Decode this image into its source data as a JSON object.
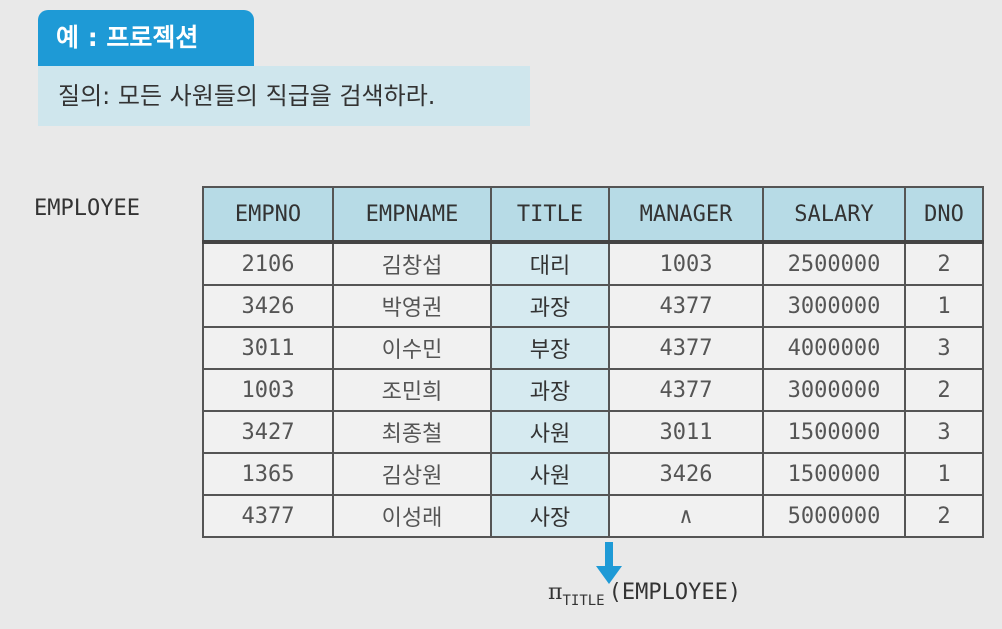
{
  "badge": {
    "text": "예 : 프로젝션"
  },
  "query": {
    "text": "질의: 모든 사원들의 직급을 검색하라."
  },
  "table": {
    "name": "EMPLOYEE",
    "columns": [
      "EMPNO",
      "EMPNAME",
      "TITLE",
      "MANAGER",
      "SALARY",
      "DNO"
    ],
    "rows": [
      [
        "2106",
        "김창섭",
        "대리",
        "1003",
        "2500000",
        "2"
      ],
      [
        "3426",
        "박영권",
        "과장",
        "4377",
        "3000000",
        "1"
      ],
      [
        "3011",
        "이수민",
        "부장",
        "4377",
        "4000000",
        "3"
      ],
      [
        "1003",
        "조민희",
        "과장",
        "4377",
        "3000000",
        "2"
      ],
      [
        "3427",
        "최종철",
        "사원",
        "3011",
        "1500000",
        "3"
      ],
      [
        "1365",
        "김상원",
        "사원",
        "3426",
        "1500000",
        "1"
      ],
      [
        "4377",
        "이성래",
        "사장",
        "∧",
        "5000000",
        "2"
      ]
    ]
  },
  "result": {
    "pi": "π",
    "sub": "TITLE",
    "expr": "(EMPLOYEE)"
  },
  "colors": {
    "badge": "#1e9ad6",
    "query_bg": "#cfe6ed",
    "header_bg": "#b7dbe6",
    "title_col": "#d6eaf0"
  }
}
